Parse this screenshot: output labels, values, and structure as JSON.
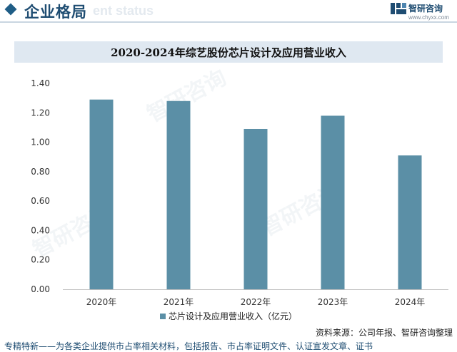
{
  "header": {
    "section_title": "企业格局",
    "section_subtitle": "ent status",
    "logo_name": "智研咨询",
    "logo_url": "www.chyxx.com"
  },
  "colors": {
    "accent": "#1f5d86",
    "bar": "#5b8fa6",
    "title_band": "#dfe8f1"
  },
  "chart_data": {
    "type": "bar",
    "title": "2020-2024年综艺股份芯片设计及应用营业收入",
    "categories": [
      "2020年",
      "2021年",
      "2022年",
      "2023年",
      "2024年"
    ],
    "series": [
      {
        "name": "芯片设计及应用营业收入（亿元）",
        "values": [
          1.29,
          1.28,
          1.09,
          1.18,
          0.91
        ]
      }
    ],
    "yticks": [
      "1.40",
      "1.20",
      "1.00",
      "0.80",
      "0.60",
      "0.40",
      "0.20",
      "0.00"
    ],
    "ylim": [
      0,
      1.4
    ],
    "grid": false,
    "legend_position": "bottom"
  },
  "source": "资料来源：公司年报、智研咨询整理",
  "footer": "专精特新——为各类企业提供市占率相关材料，包括报告、市占率证明文件、认证宣发文章、证书",
  "watermark_text": "智研咨询"
}
